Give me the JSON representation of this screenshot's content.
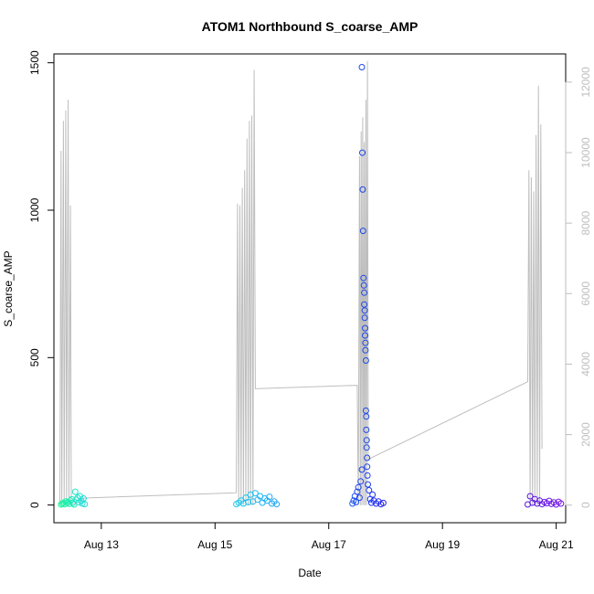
{
  "chart_data": {
    "type": "scatter",
    "title": "ATOM1 Northbound S_coarse_AMP",
    "xlabel": "Date",
    "ylabel": "S_coarse_AMP",
    "x_axis": {
      "type": "date",
      "range": [
        "2011-08-12T04:00",
        "2011-08-21T04:00"
      ],
      "ticks": [
        {
          "value": "2011-08-13",
          "label": "Aug 13"
        },
        {
          "value": "2011-08-15",
          "label": "Aug 15"
        },
        {
          "value": "2011-08-17",
          "label": "Aug 17"
        },
        {
          "value": "2011-08-19",
          "label": "Aug 19"
        },
        {
          "value": "2011-08-21",
          "label": "Aug 21"
        }
      ]
    },
    "y_axis_left": {
      "range": [
        -60,
        1530
      ],
      "ticks": [
        0,
        500,
        1000,
        1500
      ]
    },
    "y_axis_right": {
      "range": [
        -500,
        12800
      ],
      "ticks": [
        0,
        2000,
        4000,
        6000,
        8000,
        10000,
        12000
      ],
      "color": "#bebebe"
    },
    "grid": false,
    "legend": "none",
    "series": [
      {
        "axis": "left",
        "mark": "open-circle",
        "points": [
          [
            "2011-08-12T07:00",
            2,
            "#1ef5a0"
          ],
          [
            "2011-08-12T07:30",
            5,
            "#1ef5a0"
          ],
          [
            "2011-08-12T08:00",
            8,
            "#1ef5a0"
          ],
          [
            "2011-08-12T08:30",
            3,
            "#1ef2aa"
          ],
          [
            "2011-08-12T09:00",
            12,
            "#1ef2aa"
          ],
          [
            "2011-08-12T09:30",
            6,
            "#1ef2aa"
          ],
          [
            "2011-08-12T10:00",
            10,
            "#1eeeb4"
          ],
          [
            "2011-08-12T10:30",
            4,
            "#1eeeb4"
          ],
          [
            "2011-08-12T11:00",
            15,
            "#1eeeb4"
          ],
          [
            "2011-08-12T11:30",
            20,
            "#1eeabe"
          ],
          [
            "2011-08-12T12:00",
            7,
            "#1eeabe"
          ],
          [
            "2011-08-12T12:30",
            2,
            "#1eeabe"
          ],
          [
            "2011-08-12T13:00",
            45,
            "#1ee6c8"
          ],
          [
            "2011-08-12T13:30",
            18,
            "#1ee6c8"
          ],
          [
            "2011-08-12T14:00",
            25,
            "#1ee6c8"
          ],
          [
            "2011-08-12T14:30",
            9,
            "#1ee2d0"
          ],
          [
            "2011-08-12T15:00",
            30,
            "#1ee2d0"
          ],
          [
            "2011-08-12T15:30",
            14,
            "#1ee2d0"
          ],
          [
            "2011-08-12T16:00",
            5,
            "#1edcd8"
          ],
          [
            "2011-08-12T16:30",
            22,
            "#1edcd8"
          ],
          [
            "2011-08-12T17:00",
            3,
            "#1edcd8"
          ],
          [
            "2011-08-15T09:00",
            3,
            "#1ec8e8"
          ],
          [
            "2011-08-15T10:00",
            8,
            "#1ec8e8"
          ],
          [
            "2011-08-15T11:00",
            15,
            "#1ec4ea"
          ],
          [
            "2011-08-15T12:00",
            5,
            "#1ec4ea"
          ],
          [
            "2011-08-15T13:00",
            25,
            "#1ec0ec"
          ],
          [
            "2011-08-15T14:00",
            10,
            "#1ec0ec"
          ],
          [
            "2011-08-15T15:00",
            35,
            "#1ebcee"
          ],
          [
            "2011-08-15T16:00",
            12,
            "#1ebcee"
          ],
          [
            "2011-08-15T17:00",
            40,
            "#1eb8f0"
          ],
          [
            "2011-08-15T18:00",
            18,
            "#1eb8f0"
          ],
          [
            "2011-08-15T19:00",
            30,
            "#1eb4f2"
          ],
          [
            "2011-08-15T20:00",
            8,
            "#1eb4f2"
          ],
          [
            "2011-08-15T21:00",
            22,
            "#1eb0f4"
          ],
          [
            "2011-08-15T22:00",
            15,
            "#1eb0f4"
          ],
          [
            "2011-08-15T23:00",
            28,
            "#1eacf6"
          ],
          [
            "2011-08-16T00:00",
            5,
            "#1eacf6"
          ],
          [
            "2011-08-16T01:00",
            12,
            "#1ea8f8"
          ],
          [
            "2011-08-16T02:00",
            3,
            "#1ea8f8"
          ],
          [
            "2011-08-17T10:00",
            5,
            "#1e5af0"
          ],
          [
            "2011-08-17T10:30",
            15,
            "#1e5af0"
          ],
          [
            "2011-08-17T11:00",
            30,
            "#1e50f0"
          ],
          [
            "2011-08-17T11:30",
            10,
            "#1e50f0"
          ],
          [
            "2011-08-17T12:00",
            45,
            "#1e48f0"
          ],
          [
            "2011-08-17T12:30",
            60,
            "#1e48f0"
          ],
          [
            "2011-08-17T13:00",
            25,
            "#1e40f0"
          ],
          [
            "2011-08-17T13:30",
            80,
            "#1e40f0"
          ],
          [
            "2011-08-17T14:00",
            120,
            "#1e40f0"
          ],
          [
            "2011-08-17T14:00",
            1485,
            "#1e48e6"
          ],
          [
            "2011-08-17T14:10",
            1195,
            "#1e48e6"
          ],
          [
            "2011-08-17T14:20",
            1070,
            "#1e48e6"
          ],
          [
            "2011-08-17T14:30",
            930,
            "#1e48e6"
          ],
          [
            "2011-08-17T14:40",
            770,
            "#1e48e6"
          ],
          [
            "2011-08-17T14:50",
            745,
            "#1e48e6"
          ],
          [
            "2011-08-17T15:00",
            720,
            "#1e48e6"
          ],
          [
            "2011-08-17T15:00",
            680,
            "#1e48e6"
          ],
          [
            "2011-08-17T15:10",
            660,
            "#1e48e6"
          ],
          [
            "2011-08-17T15:10",
            635,
            "#1e48e6"
          ],
          [
            "2011-08-17T15:20",
            600,
            "#1e48e6"
          ],
          [
            "2011-08-17T15:20",
            575,
            "#1e48e6"
          ],
          [
            "2011-08-17T15:30",
            550,
            "#1e48e6"
          ],
          [
            "2011-08-17T15:30",
            525,
            "#1e48e6"
          ],
          [
            "2011-08-17T15:40",
            490,
            "#1e48e6"
          ],
          [
            "2011-08-17T15:40",
            320,
            "#1e48e6"
          ],
          [
            "2011-08-17T15:50",
            300,
            "#1e48e6"
          ],
          [
            "2011-08-17T15:50",
            255,
            "#1e48e6"
          ],
          [
            "2011-08-17T16:00",
            220,
            "#1e48e6"
          ],
          [
            "2011-08-17T16:00",
            195,
            "#1e48e6"
          ],
          [
            "2011-08-17T16:10",
            160,
            "#1e48e6"
          ],
          [
            "2011-08-17T16:10",
            130,
            "#1e48e6"
          ],
          [
            "2011-08-17T16:20",
            100,
            "#1e40f0"
          ],
          [
            "2011-08-17T16:30",
            70,
            "#1e40f0"
          ],
          [
            "2011-08-17T17:00",
            50,
            "#1e38f0"
          ],
          [
            "2011-08-17T17:30",
            20,
            "#1e38f0"
          ],
          [
            "2011-08-17T18:00",
            8,
            "#1e38f0"
          ],
          [
            "2011-08-17T18:30",
            35,
            "#1e30f0"
          ],
          [
            "2011-08-17T19:00",
            15,
            "#1e30f0"
          ],
          [
            "2011-08-17T20:00",
            5,
            "#1e28f0"
          ],
          [
            "2011-08-17T21:00",
            12,
            "#1e28f0"
          ],
          [
            "2011-08-17T22:00",
            3,
            "#1e20f0"
          ],
          [
            "2011-08-17T23:00",
            7,
            "#1e20f0"
          ],
          [
            "2011-08-20T12:00",
            2,
            "#5a14e6"
          ],
          [
            "2011-08-20T13:00",
            30,
            "#5a14e6"
          ],
          [
            "2011-08-20T14:00",
            8,
            "#5a14e6"
          ],
          [
            "2011-08-20T15:00",
            20,
            "#5e14e6"
          ],
          [
            "2011-08-20T16:00",
            5,
            "#5e14e6"
          ],
          [
            "2011-08-20T17:00",
            15,
            "#6214e6"
          ],
          [
            "2011-08-20T18:00",
            3,
            "#6214e6"
          ],
          [
            "2011-08-20T19:00",
            10,
            "#6614e6"
          ],
          [
            "2011-08-20T20:00",
            6,
            "#6614e6"
          ],
          [
            "2011-08-20T21:00",
            14,
            "#6a14e6"
          ],
          [
            "2011-08-20T22:00",
            4,
            "#6a14e6"
          ],
          [
            "2011-08-20T23:00",
            9,
            "#6e14e6"
          ],
          [
            "2011-08-21T00:00",
            2,
            "#6e14e6"
          ],
          [
            "2011-08-21T01:00",
            11,
            "#7214e6"
          ],
          [
            "2011-08-21T02:00",
            5,
            "#7214e6"
          ]
        ]
      },
      {
        "axis": "right",
        "mark": "line",
        "color": "#bebebe",
        "points": [
          [
            "2011-08-12T06:30",
            0
          ],
          [
            "2011-08-12T07:00",
            10050
          ],
          [
            "2011-08-12T07:20",
            0
          ],
          [
            "2011-08-12T08:00",
            10900
          ],
          [
            "2011-08-12T08:20",
            0
          ],
          [
            "2011-08-12T09:00",
            11200
          ],
          [
            "2011-08-12T09:20",
            0
          ],
          [
            "2011-08-12T10:00",
            11500
          ],
          [
            "2011-08-12T10:20",
            0
          ],
          [
            "2011-08-12T11:00",
            8500
          ],
          [
            "2011-08-12T11:20",
            0
          ],
          [
            "2011-08-12T17:00",
            200
          ],
          [
            "2011-08-15T09:00",
            350
          ],
          [
            "2011-08-15T09:30",
            8550
          ],
          [
            "2011-08-15T10:00",
            0
          ],
          [
            "2011-08-15T10:30",
            8500
          ],
          [
            "2011-08-15T11:00",
            0
          ],
          [
            "2011-08-15T11:30",
            9000
          ],
          [
            "2011-08-15T12:00",
            0
          ],
          [
            "2011-08-15T12:30",
            9500
          ],
          [
            "2011-08-15T13:00",
            0
          ],
          [
            "2011-08-15T13:30",
            10400
          ],
          [
            "2011-08-15T14:00",
            0
          ],
          [
            "2011-08-15T14:30",
            10900
          ],
          [
            "2011-08-15T15:00",
            0
          ],
          [
            "2011-08-15T15:30",
            11050
          ],
          [
            "2011-08-15T16:00",
            0
          ],
          [
            "2011-08-15T16:30",
            12350
          ],
          [
            "2011-08-15T17:00",
            3300
          ],
          [
            "2011-08-17T12:00",
            3400
          ],
          [
            "2011-08-17T12:30",
            0
          ],
          [
            "2011-08-17T13:00",
            9900
          ],
          [
            "2011-08-17T13:20",
            0
          ],
          [
            "2011-08-17T13:40",
            10600
          ],
          [
            "2011-08-17T14:00",
            0
          ],
          [
            "2011-08-17T14:20",
            11000
          ],
          [
            "2011-08-17T14:40",
            0
          ],
          [
            "2011-08-17T15:00",
            10300
          ],
          [
            "2011-08-17T15:20",
            0
          ],
          [
            "2011-08-17T15:40",
            11500
          ],
          [
            "2011-08-17T16:00",
            0
          ],
          [
            "2011-08-17T16:20",
            12600
          ],
          [
            "2011-08-17T16:40",
            1300
          ],
          [
            "2011-08-20T12:00",
            3500
          ],
          [
            "2011-08-20T12:30",
            9500
          ],
          [
            "2011-08-20T13:00",
            0
          ],
          [
            "2011-08-20T13:30",
            9300
          ],
          [
            "2011-08-20T14:00",
            0
          ],
          [
            "2011-08-20T14:30",
            8900
          ],
          [
            "2011-08-20T15:00",
            0
          ],
          [
            "2011-08-20T15:30",
            10500
          ],
          [
            "2011-08-20T16:00",
            0
          ],
          [
            "2011-08-20T16:30",
            11900
          ],
          [
            "2011-08-20T17:00",
            0
          ],
          [
            "2011-08-20T17:30",
            10800
          ],
          [
            "2011-08-20T18:00",
            1600
          ]
        ]
      }
    ]
  }
}
